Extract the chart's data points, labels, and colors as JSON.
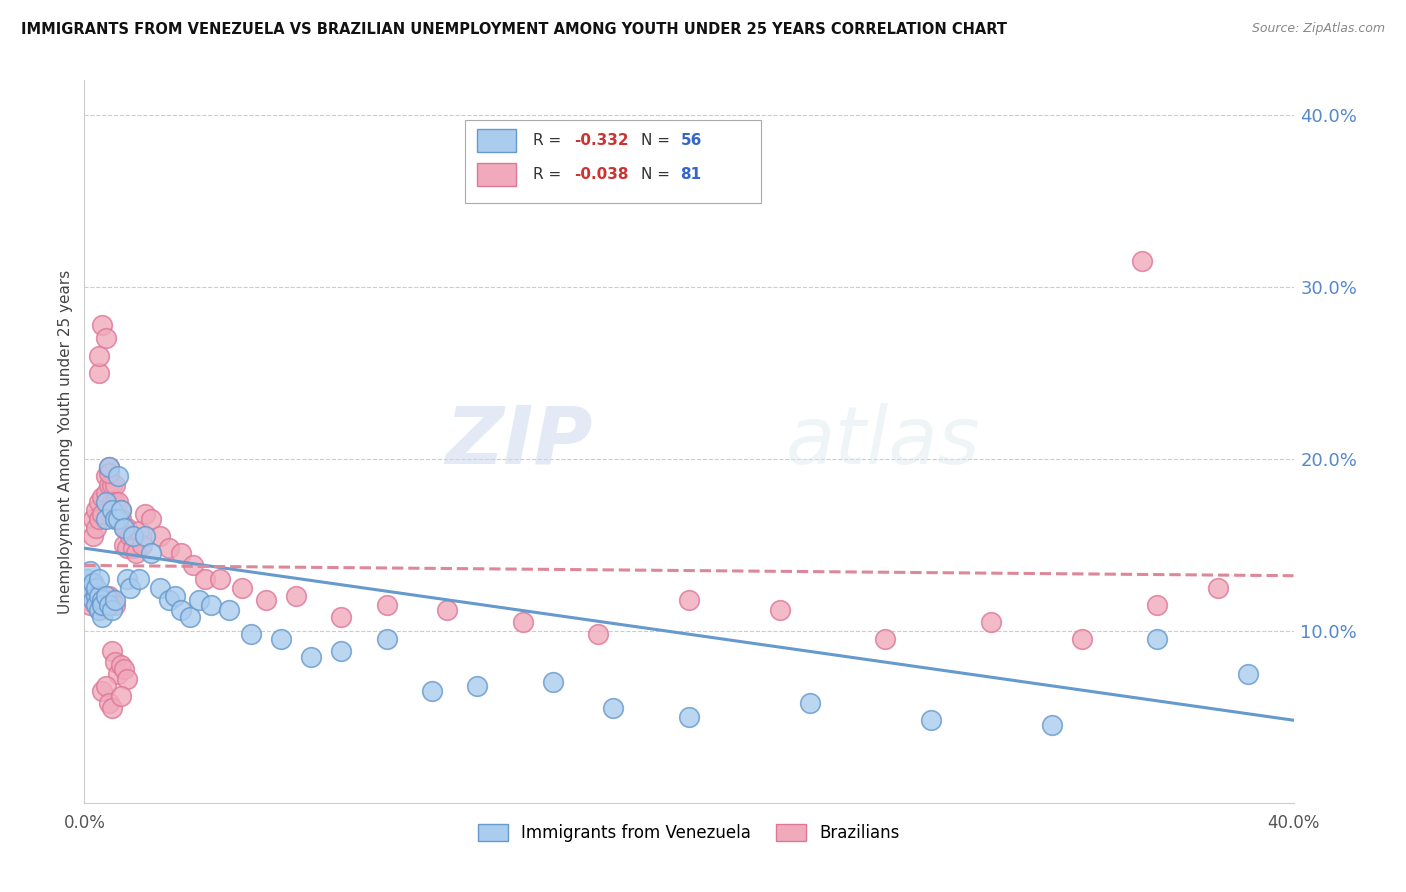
{
  "title": "IMMIGRANTS FROM VENEZUELA VS BRAZILIAN UNEMPLOYMENT AMONG YOUTH UNDER 25 YEARS CORRELATION CHART",
  "source": "Source: ZipAtlas.com",
  "ylabel": "Unemployment Among Youth under 25 years",
  "xlim": [
    0.0,
    0.4
  ],
  "ylim": [
    0.0,
    0.42
  ],
  "yticks": [
    0.1,
    0.2,
    0.3,
    0.4
  ],
  "ytick_labels": [
    "10.0%",
    "20.0%",
    "30.0%",
    "40.0%"
  ],
  "legend_label1": "Immigrants from Venezuela",
  "legend_label2": "Brazilians",
  "r1": "-0.332",
  "n1": "56",
  "r2": "-0.038",
  "n2": "81",
  "color_blue": "#aaccee",
  "color_pink": "#f0aabb",
  "color_blue_edge": "#6699cc",
  "color_pink_edge": "#dd7799",
  "color_blue_line": "#6699cc",
  "color_pink_line": "#dd8899",
  "watermark_zip": "ZIP",
  "watermark_atlas": "atlas",
  "blue_x": [
    0.001,
    0.002,
    0.002,
    0.003,
    0.003,
    0.004,
    0.004,
    0.004,
    0.005,
    0.005,
    0.005,
    0.006,
    0.006,
    0.006,
    0.007,
    0.007,
    0.007,
    0.008,
    0.008,
    0.009,
    0.009,
    0.01,
    0.01,
    0.011,
    0.011,
    0.012,
    0.013,
    0.014,
    0.015,
    0.016,
    0.018,
    0.02,
    0.022,
    0.025,
    0.028,
    0.03,
    0.032,
    0.035,
    0.038,
    0.042,
    0.048,
    0.055,
    0.065,
    0.075,
    0.085,
    0.1,
    0.115,
    0.13,
    0.155,
    0.175,
    0.2,
    0.24,
    0.28,
    0.32,
    0.355,
    0.385
  ],
  "blue_y": [
    0.13,
    0.125,
    0.135,
    0.118,
    0.128,
    0.12,
    0.115,
    0.125,
    0.112,
    0.12,
    0.13,
    0.118,
    0.108,
    0.115,
    0.175,
    0.165,
    0.12,
    0.195,
    0.115,
    0.17,
    0.112,
    0.165,
    0.118,
    0.19,
    0.165,
    0.17,
    0.16,
    0.13,
    0.125,
    0.155,
    0.13,
    0.155,
    0.145,
    0.125,
    0.118,
    0.12,
    0.112,
    0.108,
    0.118,
    0.115,
    0.112,
    0.098,
    0.095,
    0.085,
    0.088,
    0.095,
    0.065,
    0.068,
    0.07,
    0.055,
    0.05,
    0.058,
    0.048,
    0.045,
    0.095,
    0.075
  ],
  "pink_x": [
    0.001,
    0.001,
    0.002,
    0.002,
    0.003,
    0.003,
    0.003,
    0.004,
    0.004,
    0.004,
    0.005,
    0.005,
    0.005,
    0.006,
    0.006,
    0.006,
    0.007,
    0.007,
    0.007,
    0.008,
    0.008,
    0.008,
    0.009,
    0.009,
    0.009,
    0.01,
    0.01,
    0.01,
    0.011,
    0.011,
    0.012,
    0.012,
    0.013,
    0.013,
    0.014,
    0.014,
    0.015,
    0.016,
    0.017,
    0.018,
    0.019,
    0.02,
    0.022,
    0.025,
    0.028,
    0.032,
    0.036,
    0.04,
    0.045,
    0.052,
    0.06,
    0.07,
    0.085,
    0.1,
    0.12,
    0.145,
    0.17,
    0.2,
    0.23,
    0.265,
    0.3,
    0.33,
    0.355,
    0.375,
    0.005,
    0.005,
    0.006,
    0.007,
    0.008,
    0.009,
    0.01,
    0.011,
    0.012,
    0.013,
    0.014,
    0.006,
    0.007,
    0.008,
    0.009,
    0.012,
    0.35
  ],
  "pink_y": [
    0.125,
    0.118,
    0.128,
    0.115,
    0.165,
    0.155,
    0.128,
    0.17,
    0.16,
    0.12,
    0.175,
    0.165,
    0.112,
    0.178,
    0.168,
    0.115,
    0.19,
    0.18,
    0.118,
    0.185,
    0.195,
    0.12,
    0.185,
    0.175,
    0.118,
    0.185,
    0.175,
    0.115,
    0.175,
    0.165,
    0.17,
    0.165,
    0.16,
    0.15,
    0.16,
    0.148,
    0.155,
    0.148,
    0.145,
    0.158,
    0.15,
    0.168,
    0.165,
    0.155,
    0.148,
    0.145,
    0.138,
    0.13,
    0.13,
    0.125,
    0.118,
    0.12,
    0.108,
    0.115,
    0.112,
    0.105,
    0.098,
    0.118,
    0.112,
    0.095,
    0.105,
    0.095,
    0.115,
    0.125,
    0.25,
    0.26,
    0.278,
    0.27,
    0.192,
    0.088,
    0.082,
    0.075,
    0.08,
    0.078,
    0.072,
    0.065,
    0.068,
    0.058,
    0.055,
    0.062,
    0.315
  ],
  "blue_trend_x": [
    0.0,
    0.4
  ],
  "blue_trend_y": [
    0.148,
    0.048
  ],
  "pink_trend_x": [
    0.0,
    0.4
  ],
  "pink_trend_y": [
    0.138,
    0.132
  ]
}
